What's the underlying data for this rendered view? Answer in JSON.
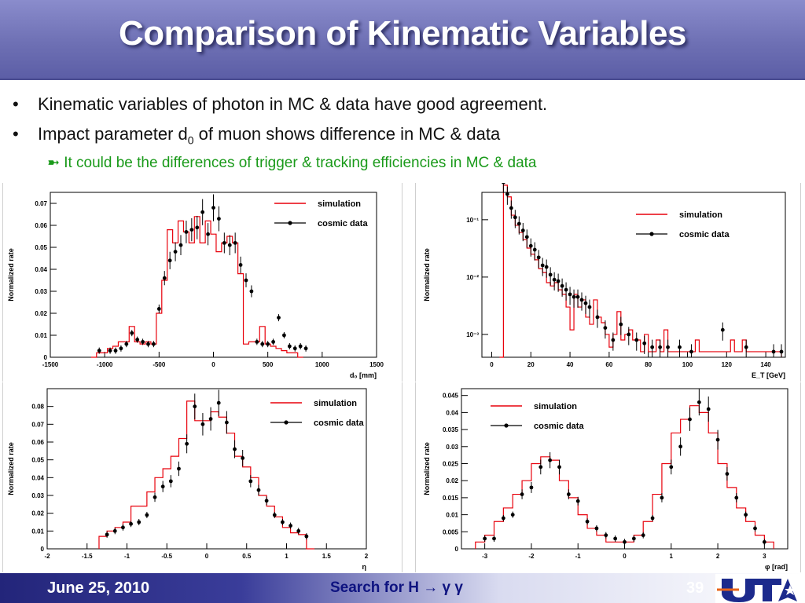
{
  "slide": {
    "title": "Comparison of  Kinematic Variables",
    "bullets": [
      "Kinematic variables of photon in MC & data have good agreement.",
      "Impact parameter d",
      "It could be the differences of  trigger & tracking efficiencies in MC & data"
    ],
    "bullet2_sub": "0",
    "bullet2_rest": " of muon  shows difference in MC & data",
    "colors": {
      "title_bg": "#6e70b4",
      "sim_line": "#e8000b",
      "data_marker": "#000000",
      "sub_bullet": "#1a9a1a"
    }
  },
  "footer": {
    "date": "June 25, 2010",
    "talk_title": "Search for H → γ γ",
    "page": "39"
  },
  "chart_data": [
    {
      "type": "line",
      "ylabel": "Normalized rate",
      "xlabel": "d₀ [mm]",
      "xlim": [
        -1500,
        1500
      ],
      "ylim": [
        0,
        0.075
      ],
      "xticks": [
        -1500,
        -1000,
        -500,
        0,
        500,
        1000,
        1500
      ],
      "yticks": [
        0,
        0.01,
        0.02,
        0.03,
        0.04,
        0.05,
        0.06,
        0.07
      ],
      "xtick_labels": [
        "-1500",
        "-1000",
        "-500",
        "0",
        "500",
        "1000",
        "1500"
      ],
      "ytick_labels": [
        "0",
        "0.01",
        "0.02",
        "0.03",
        "0.04",
        "0.05",
        "0.06",
        "0.07"
      ],
      "legend": [
        "simulation",
        "cosmic data"
      ],
      "legend_position": "top-right",
      "series": [
        {
          "name": "simulation",
          "style": "step",
          "x": [
            -1100,
            -1050,
            -1000,
            -950,
            -900,
            -850,
            -800,
            -750,
            -700,
            -650,
            -600,
            -550,
            -500,
            -450,
            -400,
            -350,
            -300,
            -250,
            -200,
            -150,
            -100,
            -50,
            0,
            50,
            100,
            150,
            200,
            250,
            300,
            350,
            400,
            450,
            500,
            550,
            600,
            650,
            700,
            750,
            800
          ],
          "y": [
            0,
            0.002,
            0.002,
            0.004,
            0.005,
            0.007,
            0.007,
            0.014,
            0.007,
            0.006,
            0.007,
            0.006,
            0.02,
            0.035,
            0.058,
            0.052,
            0.062,
            0.057,
            0.052,
            0.064,
            0.052,
            0.062,
            0.056,
            0.048,
            0.052,
            0.055,
            0.052,
            0.038,
            0.006,
            0.007,
            0.007,
            0.014,
            0.006,
            0.005,
            0.004,
            0.003,
            0.002,
            0.002,
            0
          ]
        },
        {
          "name": "cosmic data",
          "style": "points",
          "x": [
            -1050,
            -950,
            -900,
            -850,
            -800,
            -750,
            -700,
            -650,
            -600,
            -550,
            -500,
            -450,
            -400,
            -350,
            -300,
            -250,
            -200,
            -150,
            -100,
            -50,
            0,
            50,
            100,
            150,
            200,
            250,
            300,
            350,
            400,
            450,
            500,
            550,
            600,
            650,
            700,
            750,
            800,
            850
          ],
          "y": [
            0.003,
            0.003,
            0.003,
            0.004,
            0.006,
            0.011,
            0.008,
            0.007,
            0.006,
            0.006,
            0.022,
            0.036,
            0.044,
            0.048,
            0.051,
            0.057,
            0.058,
            0.059,
            0.066,
            0.056,
            0.068,
            0.063,
            0.052,
            0.051,
            0.052,
            0.042,
            0.035,
            0.03,
            0.007,
            0.006,
            0.006,
            0.007,
            0.018,
            0.01,
            0.005,
            0.004,
            0.005,
            0.004
          ]
        }
      ]
    },
    {
      "type": "line",
      "ylabel": "Normalized rate",
      "xlabel": "E_T [GeV]",
      "yscale": "log",
      "xlim": [
        -5,
        150
      ],
      "ylim": [
        0.0004,
        0.3
      ],
      "xticks": [
        0,
        20,
        40,
        60,
        80,
        100,
        120,
        140
      ],
      "xtick_labels": [
        "0",
        "20",
        "40",
        "60",
        "80",
        "100",
        "120",
        "140"
      ],
      "yticks": [
        0.001,
        0.01,
        0.1
      ],
      "ytick_labels": [
        "10⁻³",
        "10⁻²",
        "10⁻¹"
      ],
      "legend": [
        "simulation",
        "cosmic data"
      ],
      "legend_position": "top-right",
      "series": [
        {
          "name": "simulation",
          "style": "step",
          "x": [
            5,
            7,
            9,
            11,
            13,
            15,
            17,
            19,
            21,
            23,
            25,
            27,
            29,
            31,
            33,
            35,
            37,
            39,
            41,
            43,
            45,
            47,
            49,
            51,
            53,
            55,
            57,
            59,
            61,
            63,
            65,
            67,
            69,
            71,
            73,
            75,
            77,
            79,
            81,
            83,
            85,
            87,
            89,
            91,
            93,
            95,
            97,
            99,
            101,
            103,
            105,
            107,
            109,
            111,
            113,
            115,
            117,
            119,
            121,
            123,
            125,
            127,
            129,
            131,
            133,
            135,
            137,
            139,
            141,
            143,
            145,
            147
          ],
          "y": [
            0.0004,
            0.4,
            0.25,
            0.12,
            0.08,
            0.06,
            0.045,
            0.032,
            0.025,
            0.02,
            0.014,
            0.012,
            0.008,
            0.007,
            0.008,
            0.006,
            0.005,
            0.003,
            0.0012,
            0.005,
            0.003,
            0.004,
            0.002,
            0.0015,
            0.004,
            0.002,
            0.0016,
            0.001,
            0.0006,
            0.001,
            0.0025,
            0.0008,
            0.001,
            0.0012,
            0.0008,
            0.0008,
            0.0005,
            0.001,
            0.0005,
            0.0005,
            0.0008,
            0.0005,
            0.0012,
            0.0005,
            0.0005,
            0.0005,
            0.0005,
            0.0005,
            0.0005,
            0.0005,
            0.0008,
            0.0005,
            0.0005,
            0.0005,
            0.0005,
            0.0005,
            0.0005,
            0.0005,
            0.0005,
            0.0008,
            0.0005,
            0.0005,
            0.0008,
            0.0005,
            0.0005,
            0.0005,
            0.0005,
            0.0005,
            0.0005,
            0.0005,
            0.0005,
            0.0005
          ]
        },
        {
          "name": "cosmic data",
          "style": "points",
          "x": [
            6,
            8,
            10,
            12,
            14,
            16,
            18,
            20,
            22,
            24,
            26,
            28,
            30,
            32,
            34,
            36,
            38,
            40,
            42,
            44,
            46,
            48,
            50,
            54,
            58,
            62,
            66,
            70,
            74,
            78,
            82,
            86,
            90,
            96,
            102,
            118,
            130,
            144,
            148
          ],
          "y": [
            0.45,
            0.28,
            0.16,
            0.11,
            0.085,
            0.065,
            0.05,
            0.035,
            0.03,
            0.022,
            0.016,
            0.015,
            0.011,
            0.009,
            0.0085,
            0.007,
            0.006,
            0.005,
            0.0045,
            0.0045,
            0.004,
            0.0035,
            0.003,
            0.002,
            0.0013,
            0.0008,
            0.0015,
            0.001,
            0.0008,
            0.0007,
            0.0006,
            0.0006,
            0.0006,
            0.0006,
            0.0005,
            0.0012,
            0.0006,
            0.0005,
            0.0005
          ]
        }
      ]
    },
    {
      "type": "line",
      "ylabel": "Normalized rate",
      "xlabel": "η",
      "xlim": [
        -2,
        2
      ],
      "ylim": [
        0,
        0.09
      ],
      "xticks": [
        -2,
        -1.5,
        -1,
        -0.5,
        0,
        0.5,
        1,
        1.5,
        2
      ],
      "xtick_labels": [
        "-2",
        "-1.5",
        "-1",
        "-0.5",
        "0",
        "0.5",
        "1",
        "1.5",
        "2"
      ],
      "yticks": [
        0,
        0.01,
        0.02,
        0.03,
        0.04,
        0.05,
        0.06,
        0.07,
        0.08
      ],
      "ytick_labels": [
        "0",
        "0.01",
        "0.02",
        "0.03",
        "0.04",
        "0.05",
        "0.06",
        "0.07",
        "0.08"
      ],
      "legend": [
        "simulation",
        "cosmic data"
      ],
      "legend_position": "top-right",
      "series": [
        {
          "name": "simulation",
          "style": "step",
          "x": [
            -1.3,
            -1.2,
            -1.1,
            -1.0,
            -0.9,
            -0.8,
            -0.7,
            -0.6,
            -0.5,
            -0.4,
            -0.3,
            -0.2,
            -0.1,
            0.0,
            0.1,
            0.2,
            0.3,
            0.4,
            0.5,
            0.6,
            0.7,
            0.8,
            0.9,
            1.0,
            1.1,
            1.2,
            1.3
          ],
          "y": [
            0.007,
            0.01,
            0.012,
            0.015,
            0.024,
            0.024,
            0.032,
            0.04,
            0.045,
            0.052,
            0.062,
            0.083,
            0.072,
            0.072,
            0.077,
            0.074,
            0.065,
            0.052,
            0.046,
            0.04,
            0.03,
            0.024,
            0.018,
            0.012,
            0.009,
            0.008,
            0
          ]
        },
        {
          "name": "cosmic data",
          "style": "points",
          "x": [
            -1.25,
            -1.15,
            -1.05,
            -0.95,
            -0.85,
            -0.75,
            -0.65,
            -0.55,
            -0.45,
            -0.35,
            -0.25,
            -0.15,
            -0.05,
            0.05,
            0.15,
            0.25,
            0.35,
            0.45,
            0.55,
            0.65,
            0.75,
            0.85,
            0.95,
            1.05,
            1.15,
            1.25
          ],
          "y": [
            0.008,
            0.01,
            0.012,
            0.014,
            0.015,
            0.019,
            0.029,
            0.035,
            0.038,
            0.045,
            0.059,
            0.08,
            0.07,
            0.073,
            0.082,
            0.071,
            0.056,
            0.051,
            0.038,
            0.033,
            0.027,
            0.019,
            0.015,
            0.013,
            0.01,
            0.007
          ]
        }
      ]
    },
    {
      "type": "line",
      "ylabel": "Normalized rate",
      "xlabel": "φ [rad]",
      "xlim": [
        -3.5,
        3.5
      ],
      "ylim": [
        0,
        0.047
      ],
      "xticks": [
        -3,
        -2,
        -1,
        0,
        1,
        2,
        3
      ],
      "xtick_labels": [
        "-3",
        "-2",
        "-1",
        "0",
        "1",
        "2",
        "3"
      ],
      "yticks": [
        0,
        0.005,
        0.01,
        0.015,
        0.02,
        0.025,
        0.03,
        0.035,
        0.04,
        0.045
      ],
      "ytick_labels": [
        "0",
        "0.005",
        "0.01",
        "0.015",
        "0.02",
        "0.025",
        "0.03",
        "0.035",
        "0.04",
        "0.045"
      ],
      "legend": [
        "simulation",
        "cosmic data"
      ],
      "legend_position": "top-left",
      "series": [
        {
          "name": "simulation",
          "style": "step",
          "x": [
            -3.1,
            -2.9,
            -2.7,
            -2.5,
            -2.3,
            -2.1,
            -1.9,
            -1.7,
            -1.5,
            -1.3,
            -1.1,
            -0.9,
            -0.7,
            -0.5,
            -0.3,
            -0.1,
            0.1,
            0.3,
            0.5,
            0.7,
            0.9,
            1.1,
            1.3,
            1.5,
            1.7,
            1.9,
            2.1,
            2.3,
            2.5,
            2.7,
            2.9,
            3.1
          ],
          "y": [
            0.002,
            0.004,
            0.008,
            0.012,
            0.016,
            0.02,
            0.025,
            0.027,
            0.026,
            0.02,
            0.015,
            0.01,
            0.006,
            0.004,
            0.002,
            0.002,
            0.002,
            0.004,
            0.008,
            0.016,
            0.025,
            0.034,
            0.038,
            0.042,
            0.04,
            0.034,
            0.025,
            0.018,
            0.012,
            0.008,
            0.004,
            0.002
          ]
        },
        {
          "name": "cosmic data",
          "style": "points",
          "x": [
            -3.0,
            -2.8,
            -2.6,
            -2.4,
            -2.2,
            -2.0,
            -1.8,
            -1.6,
            -1.4,
            -1.2,
            -1.0,
            -0.8,
            -0.6,
            -0.4,
            -0.2,
            0.0,
            0.2,
            0.4,
            0.6,
            0.8,
            1.0,
            1.2,
            1.4,
            1.6,
            1.8,
            2.0,
            2.2,
            2.4,
            2.6,
            2.8,
            3.0
          ],
          "y": [
            0.003,
            0.003,
            0.009,
            0.01,
            0.016,
            0.018,
            0.024,
            0.026,
            0.024,
            0.016,
            0.014,
            0.008,
            0.006,
            0.004,
            0.003,
            0.002,
            0.003,
            0.004,
            0.009,
            0.015,
            0.024,
            0.03,
            0.038,
            0.043,
            0.041,
            0.032,
            0.022,
            0.015,
            0.01,
            0.006,
            0.002
          ]
        }
      ]
    }
  ]
}
